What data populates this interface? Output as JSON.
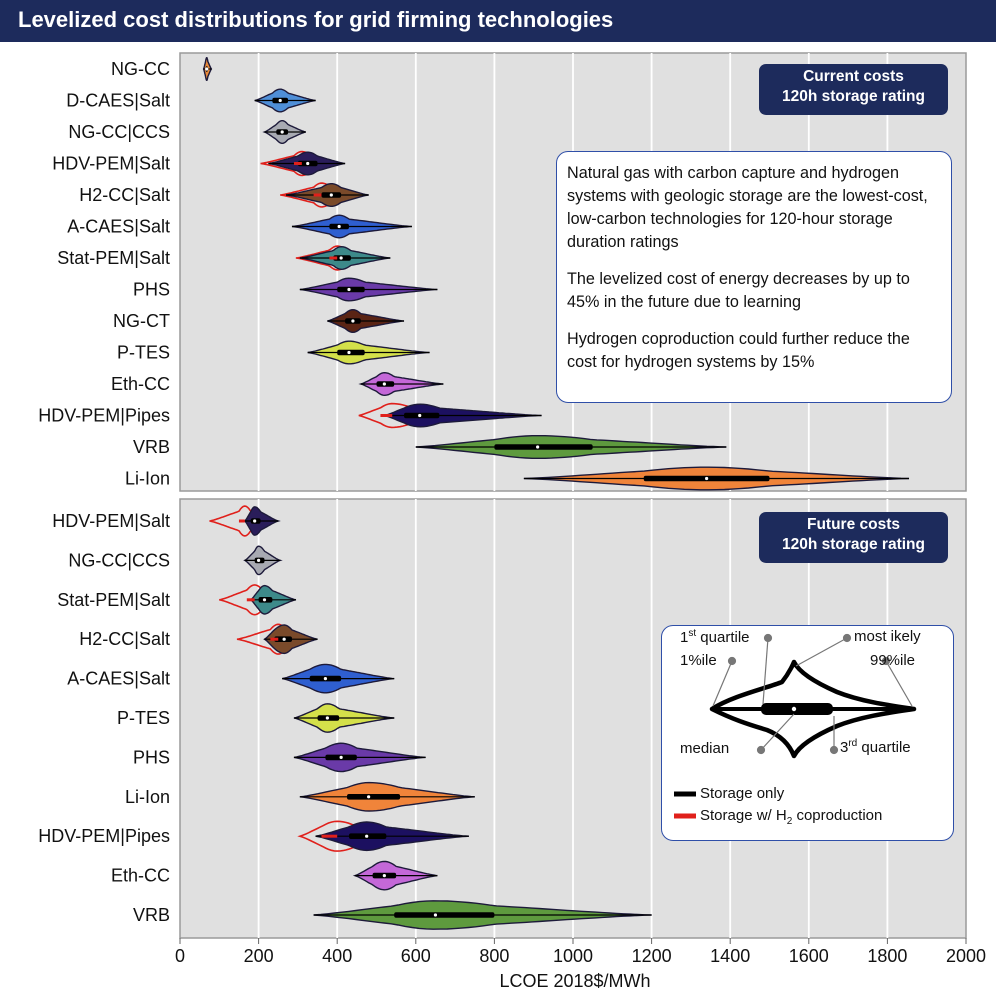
{
  "title": "Levelized cost distributions for grid firming technologies",
  "colors": {
    "title_bg": "#1d2b5c",
    "plot_bg": "#e0e0e0",
    "grid": "#ffffff",
    "box_border": "#2f4fa8",
    "h2_line": "#e0201b"
  },
  "panels": {
    "top": {
      "box_line1": "Current costs",
      "box_line2": "120h storage rating"
    },
    "bottom": {
      "box_line1": "Future costs",
      "box_line2": "120h storage rating"
    }
  },
  "annotation": {
    "p1": "Natural gas with carbon capture and hydrogen systems with geologic storage are the lowest-cost, low-carbon technologies for 120-hour storage duration ratings",
    "p2": "The levelized cost of energy decreases by up to 45% in the future due to learning",
    "p3": "Hydrogen coproduction could further reduce the cost for hydrogen systems by 15%"
  },
  "legend": {
    "q1_sup": "st",
    "q1_rest": "1",
    "q1_word": " quartile",
    "most_likely": "most ikely",
    "p1": "1%ile",
    "p99": "99%ile",
    "median": "median",
    "q3": "3",
    "q3_sup": "rd",
    "q3_word": " quartile",
    "storage_only": "Storage only",
    "storage_h2_pre": "Storage w/ H",
    "storage_h2_sub": "2",
    "storage_h2_post": " coproduction"
  },
  "chart_data": [
    {
      "type": "violin",
      "name": "Current costs",
      "xlabel": "LCOE 2018$/MWh",
      "xlim": [
        0,
        2000
      ],
      "grid": true,
      "series": [
        {
          "label": "NG-CC",
          "color": "#e8893a",
          "p1": 60,
          "q1": 65,
          "median": 68,
          "mode": 68,
          "q3": 71,
          "p99": 80
        },
        {
          "label": "D-CAES|Salt",
          "color": "#4f8fd8",
          "p1": 190,
          "q1": 235,
          "median": 255,
          "mode": 250,
          "q3": 275,
          "p99": 345
        },
        {
          "label": "NG-CC|CCS",
          "color": "#a8aab2",
          "p1": 215,
          "q1": 245,
          "median": 260,
          "mode": 260,
          "q3": 275,
          "p99": 320
        },
        {
          "label": "HDV-PEM|Salt",
          "color": "#2a1d5a",
          "p1": 225,
          "q1": 300,
          "median": 325,
          "mode": 320,
          "q3": 350,
          "p99": 420,
          "h2": {
            "p1": 205,
            "q1": 290,
            "median": 310,
            "p99": 400
          }
        },
        {
          "label": "H2-CC|Salt",
          "color": "#7a4a2a",
          "p1": 270,
          "q1": 360,
          "median": 385,
          "mode": 380,
          "q3": 410,
          "p99": 480,
          "h2": {
            "p1": 255,
            "q1": 340,
            "median": 360,
            "p99": 460
          }
        },
        {
          "label": "A-CAES|Salt",
          "color": "#2f5fd0",
          "p1": 285,
          "q1": 380,
          "median": 405,
          "mode": 400,
          "q3": 430,
          "p99": 590
        },
        {
          "label": "Stat-PEM|Salt",
          "color": "#3d8a8a",
          "p1": 305,
          "q1": 390,
          "median": 410,
          "mode": 410,
          "q3": 435,
          "p99": 535,
          "h2": {
            "p1": 295,
            "q1": 380,
            "median": 400,
            "p99": 515
          }
        },
        {
          "label": "PHS",
          "color": "#6a3aa8",
          "p1": 305,
          "q1": 400,
          "median": 430,
          "mode": 430,
          "q3": 470,
          "p99": 655
        },
        {
          "label": "NG-CT",
          "color": "#5a2414",
          "p1": 375,
          "q1": 420,
          "median": 440,
          "mode": 440,
          "q3": 460,
          "p99": 570
        },
        {
          "label": "P-TES",
          "color": "#d4e04a",
          "p1": 325,
          "q1": 400,
          "median": 430,
          "mode": 430,
          "q3": 470,
          "p99": 635
        },
        {
          "label": "Eth-CC",
          "color": "#c468d8",
          "p1": 460,
          "q1": 500,
          "median": 520,
          "mode": 520,
          "q3": 545,
          "p99": 670
        },
        {
          "label": "HDV-PEM|Pipes",
          "color": "#1c1060",
          "p1": 520,
          "q1": 570,
          "median": 610,
          "mode": 600,
          "q3": 660,
          "p99": 920,
          "h2": {
            "p1": 455,
            "q1": 510,
            "median": 540,
            "p99": 790
          }
        },
        {
          "label": "VRB",
          "color": "#5e9a3e",
          "p1": 600,
          "q1": 800,
          "median": 910,
          "mode": 910,
          "q3": 1050,
          "p99": 1390
        },
        {
          "label": "Li-Ion",
          "color": "#f0843a",
          "p1": 875,
          "q1": 1180,
          "median": 1340,
          "mode": 1340,
          "q3": 1500,
          "p99": 1855
        }
      ]
    },
    {
      "type": "violin",
      "name": "Future costs",
      "xlabel": "LCOE 2018$/MWh",
      "xlim": [
        0,
        2000
      ],
      "xticks": [
        0,
        200,
        400,
        600,
        800,
        1000,
        1200,
        1400,
        1600,
        1800,
        2000
      ],
      "grid": true,
      "series": [
        {
          "label": "HDV-PEM|Salt",
          "color": "#2a1d5a",
          "p1": 165,
          "q1": 180,
          "median": 190,
          "mode": 190,
          "q3": 205,
          "p99": 250,
          "h2": {
            "p1": 75,
            "q1": 150,
            "median": 165,
            "p99": 240
          }
        },
        {
          "label": "NG-CC|CCS",
          "color": "#a8aab2",
          "p1": 165,
          "q1": 190,
          "median": 200,
          "mode": 200,
          "q3": 215,
          "p99": 255
        },
        {
          "label": "Stat-PEM|Salt",
          "color": "#3d8a8a",
          "p1": 180,
          "q1": 200,
          "median": 215,
          "mode": 215,
          "q3": 235,
          "p99": 295,
          "h2": {
            "p1": 100,
            "q1": 170,
            "median": 190,
            "p99": 280
          }
        },
        {
          "label": "H2-CC|Salt",
          "color": "#7a4a2a",
          "p1": 215,
          "q1": 240,
          "median": 265,
          "mode": 265,
          "q3": 285,
          "p99": 350,
          "h2": {
            "p1": 145,
            "q1": 230,
            "median": 250,
            "p99": 330
          }
        },
        {
          "label": "A-CAES|Salt",
          "color": "#2f5fd0",
          "p1": 260,
          "q1": 330,
          "median": 370,
          "mode": 370,
          "q3": 410,
          "p99": 545
        },
        {
          "label": "P-TES",
          "color": "#d4e04a",
          "p1": 290,
          "q1": 350,
          "median": 375,
          "mode": 375,
          "q3": 405,
          "p99": 545
        },
        {
          "label": "PHS",
          "color": "#6a3aa8",
          "p1": 290,
          "q1": 370,
          "median": 410,
          "mode": 410,
          "q3": 450,
          "p99": 625
        },
        {
          "label": "Li-Ion",
          "color": "#f0843a",
          "p1": 305,
          "q1": 425,
          "median": 480,
          "mode": 480,
          "q3": 560,
          "p99": 750
        },
        {
          "label": "HDV-PEM|Pipes",
          "color": "#1c1060",
          "p1": 345,
          "q1": 430,
          "median": 475,
          "mode": 470,
          "q3": 525,
          "p99": 735,
          "h2": {
            "p1": 305,
            "q1": 360,
            "median": 400,
            "p99": 655
          }
        },
        {
          "label": "Eth-CC",
          "color": "#c468d8",
          "p1": 445,
          "q1": 490,
          "median": 520,
          "mode": 520,
          "q3": 550,
          "p99": 655
        },
        {
          "label": "VRB",
          "color": "#5e9a3e",
          "p1": 340,
          "q1": 545,
          "median": 650,
          "mode": 650,
          "q3": 800,
          "p99": 1200
        }
      ]
    }
  ]
}
